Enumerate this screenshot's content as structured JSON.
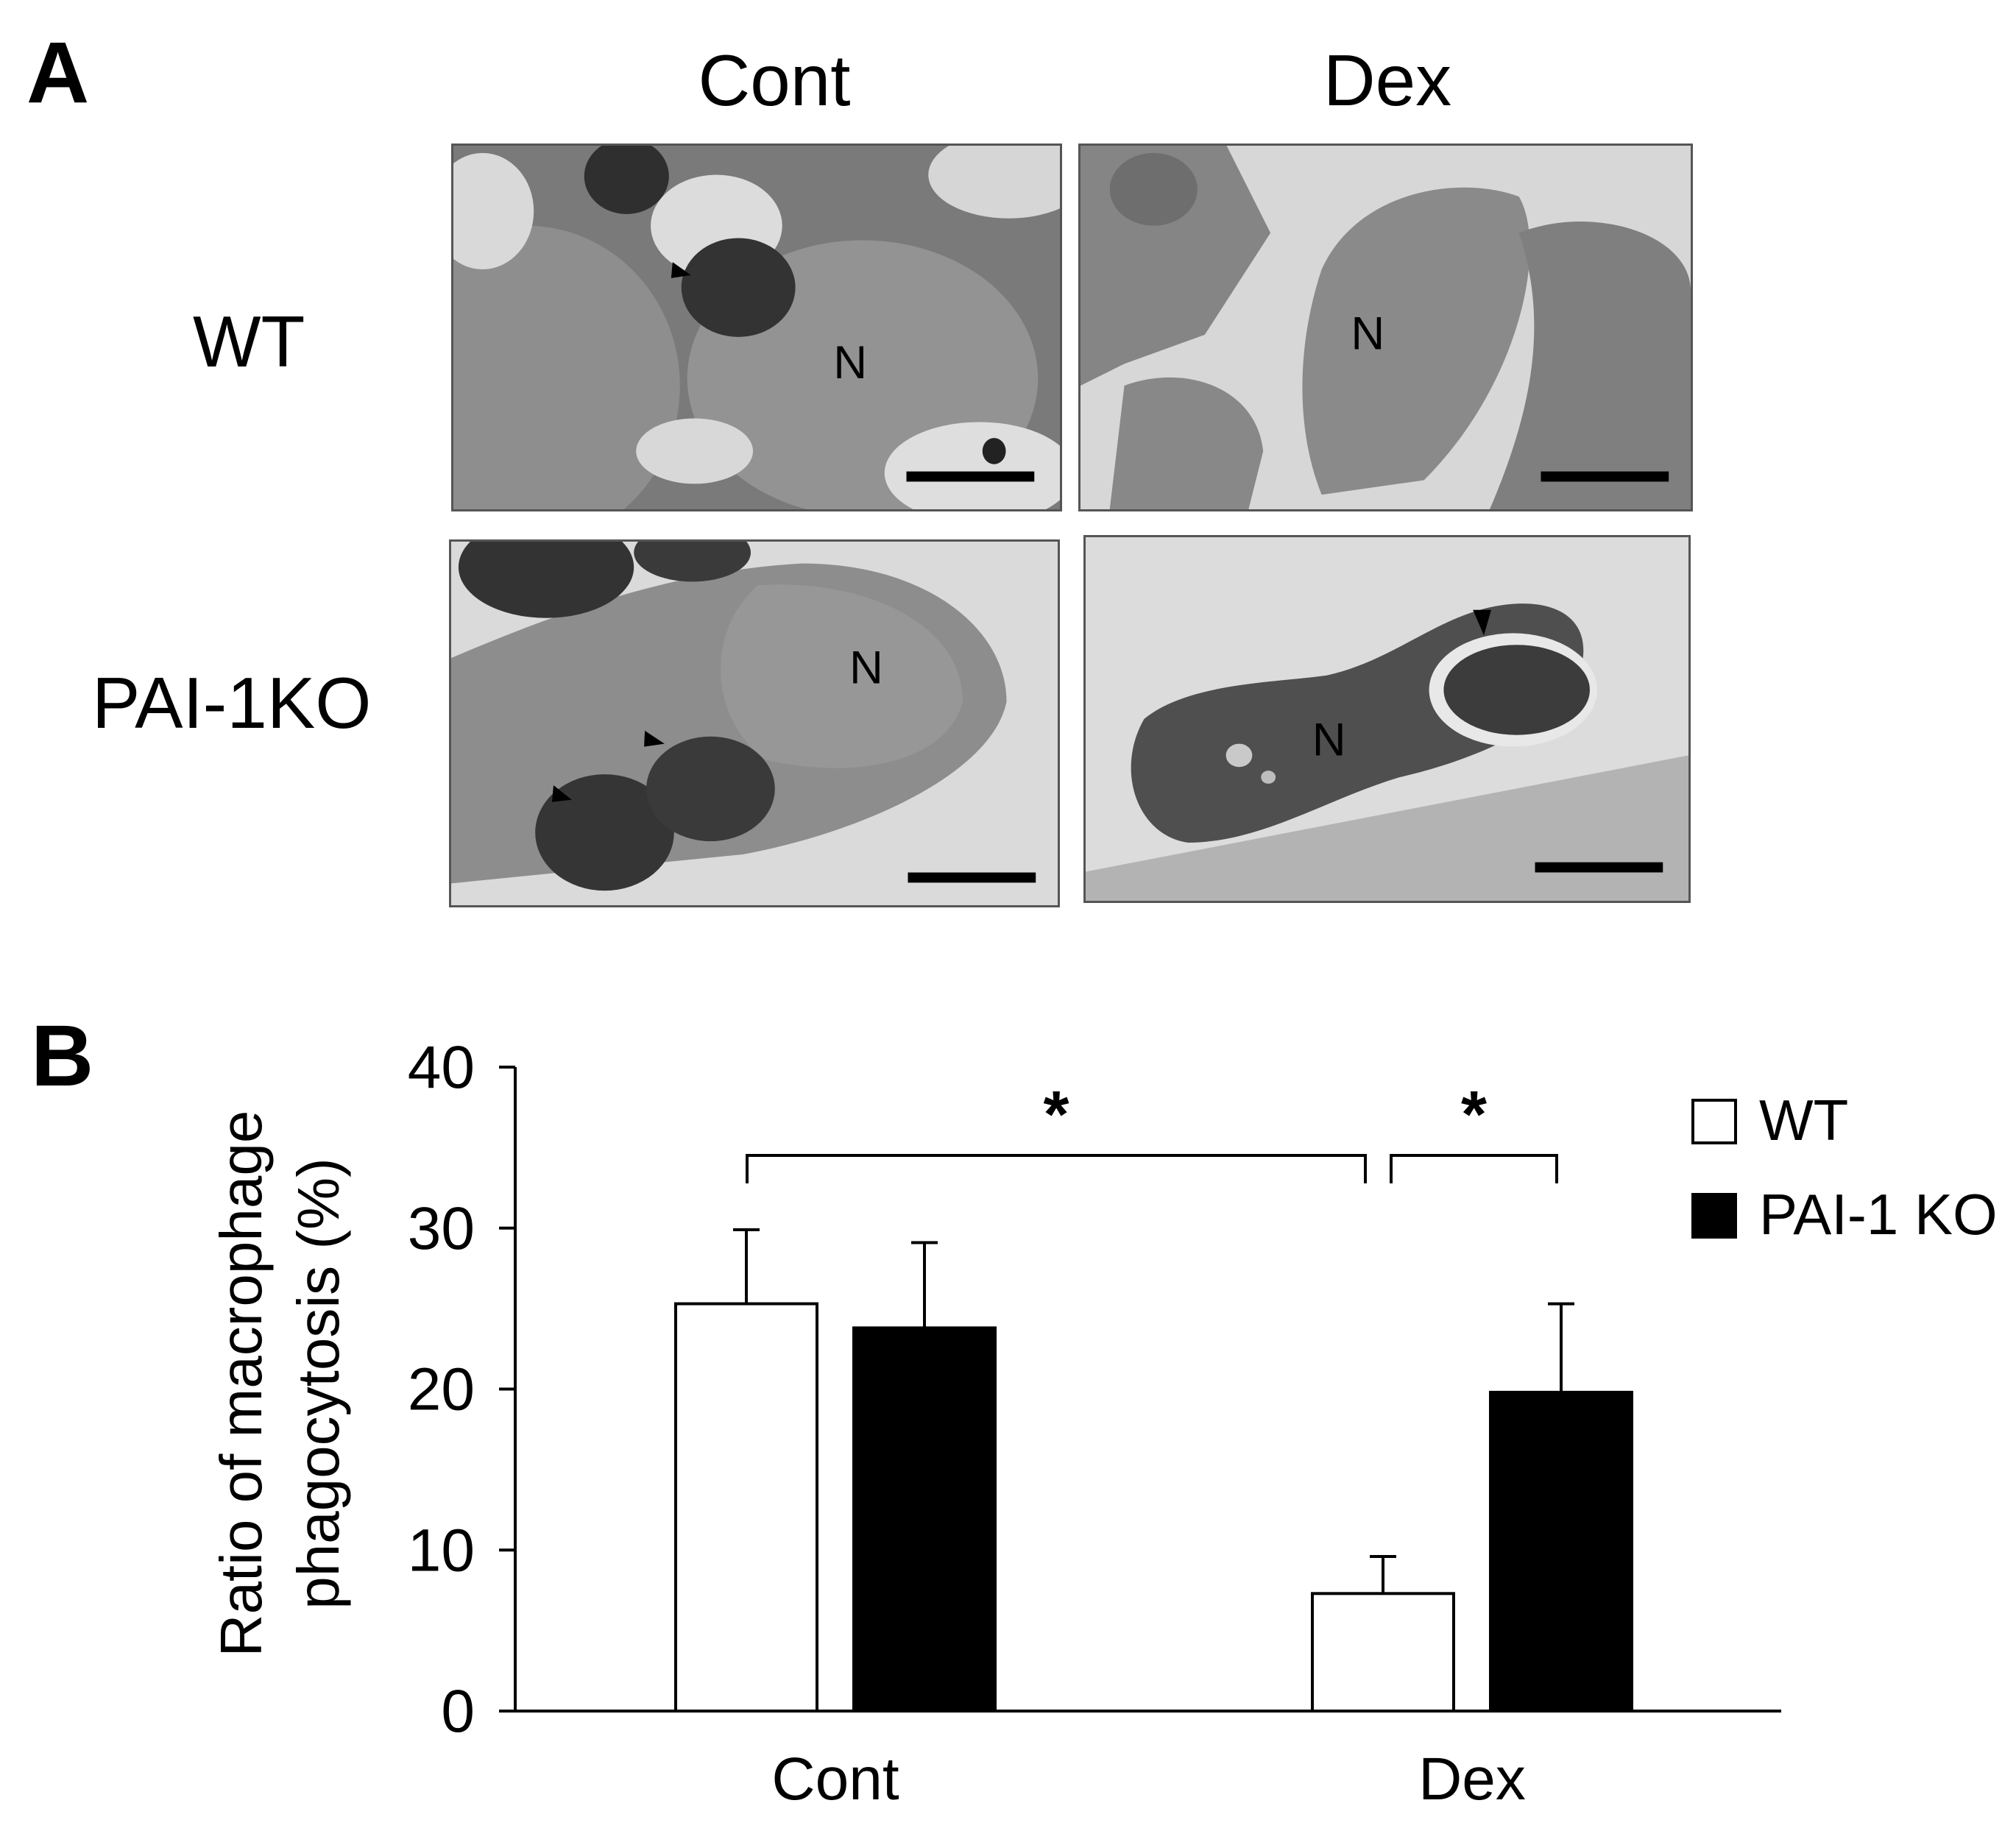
{
  "panel_a": {
    "letter": "A",
    "columns": [
      "Cont",
      "Dex"
    ],
    "rows": [
      "WT",
      "PAI-1KO"
    ],
    "nucleus_label": "N",
    "tiles": [
      {
        "row": "WT",
        "column": "Cont",
        "image": "electron-micrograph",
        "nucleus_label": "N",
        "arrowheads": 1,
        "scale_bar": true
      },
      {
        "row": "WT",
        "column": "Dex",
        "image": "electron-micrograph",
        "nucleus_label": "N",
        "arrowheads": 0,
        "scale_bar": true
      },
      {
        "row": "PAI-1KO",
        "column": "Cont",
        "image": "electron-micrograph",
        "nucleus_label": "N",
        "arrowheads": 2,
        "scale_bar": true
      },
      {
        "row": "PAI-1KO",
        "column": "Dex",
        "image": "electron-micrograph",
        "nucleus_label": "N",
        "arrowheads": 1,
        "scale_bar": true
      }
    ]
  },
  "panel_b": {
    "letter": "B"
  },
  "chart_data": {
    "type": "bar",
    "title": "",
    "xlabel": "",
    "ylabel": "Ratio of macrophage phagocytosis (%)",
    "ylabel_lines": [
      "Ratio of macrophage",
      "phagocytosis (%)"
    ],
    "ylim": [
      0,
      40
    ],
    "yticks": [
      0,
      10,
      20,
      30,
      40
    ],
    "categories": [
      "Cont",
      "Dex"
    ],
    "series": [
      {
        "name": "WT",
        "values": [
          25.3,
          7.3
        ],
        "errors": [
          4.6,
          2.3
        ],
        "color": "#ffffff",
        "edge": "#000000"
      },
      {
        "name": "PAI-1 KO",
        "values": [
          23.8,
          19.8
        ],
        "errors": [
          5.3,
          5.5
        ],
        "color": "#000000",
        "edge": "#000000"
      }
    ],
    "legend": {
      "position": "top-right"
    },
    "grid": false,
    "significance": [
      {
        "between": [
          "Cont WT",
          "Dex WT"
        ],
        "label": "*"
      },
      {
        "between": [
          "Dex WT",
          "Dex PAI-1 KO"
        ],
        "label": "*"
      }
    ]
  }
}
